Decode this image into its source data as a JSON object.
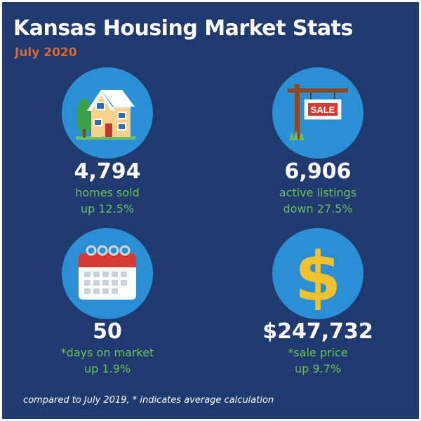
{
  "header": {
    "title": "Kansas Housing Market Stats",
    "subtitle": "July 2020"
  },
  "stats": [
    {
      "icon": "house-icon",
      "value": "4,794",
      "label": "homes sold",
      "change": "up 12.5%"
    },
    {
      "icon": "for-sale-sign-icon",
      "sign_text": "SALE",
      "value": "6,906",
      "label": "active listings",
      "change": "down 27.5%"
    },
    {
      "icon": "calendar-icon",
      "value": "50",
      "label": "*days on market",
      "change": "up 1.9%"
    },
    {
      "icon": "dollar-sign-icon",
      "value": "$247,732",
      "label": "*sale price",
      "change": "up 9.7%"
    }
  ],
  "footnote": "compared to July 2019, * indicates average calculation",
  "colors": {
    "background": "#1e3a6e",
    "circle": "#2b8fd6",
    "accent_orange": "#e0662b",
    "label_green": "#6cbf5c",
    "dollar_gold": "#f2c22e"
  }
}
